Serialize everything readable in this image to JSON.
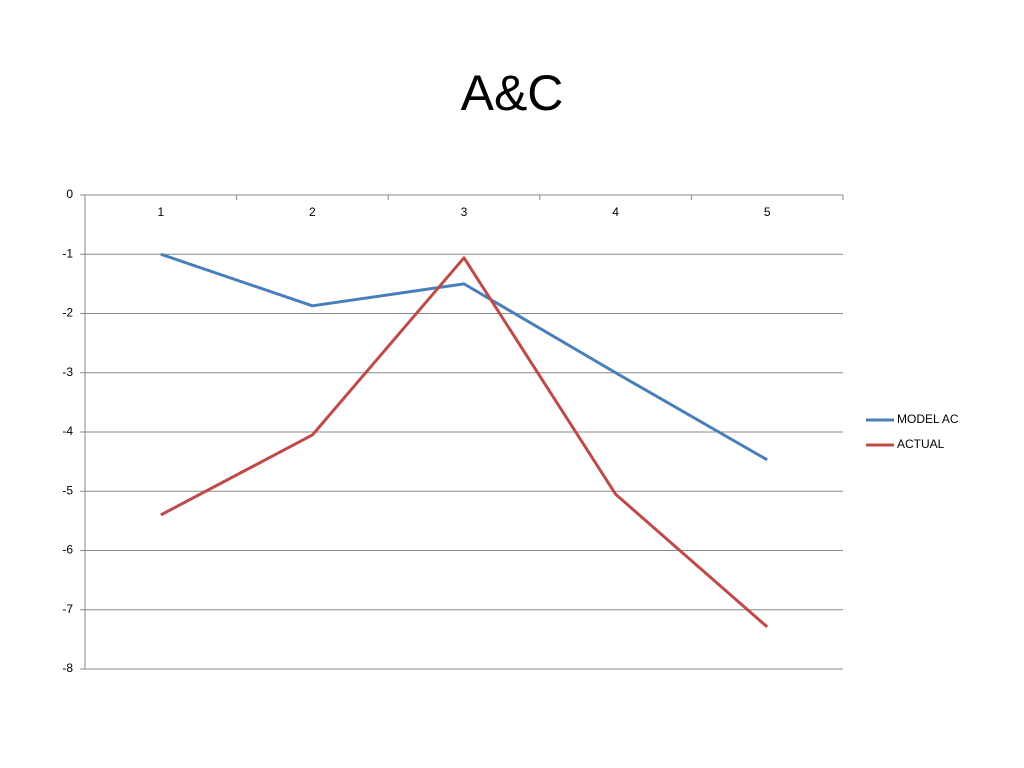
{
  "chart_data": {
    "type": "line",
    "title": "A&C",
    "categories": [
      "1",
      "2",
      "3",
      "4",
      "5"
    ],
    "series": [
      {
        "name": "MODEL AC",
        "color": "#4a7ebb",
        "values": [
          -1,
          -1.87,
          -1.5,
          -3.0,
          -4.47
        ]
      },
      {
        "name": "ACTUAL",
        "color": "#be4b48",
        "values": [
          -5.4,
          -4.05,
          -1.06,
          -5.05,
          -7.29
        ]
      }
    ],
    "ylim": [
      -8,
      0
    ],
    "yticks": [
      0,
      -1,
      -2,
      -3,
      -4,
      -5,
      -6,
      -7,
      -8
    ],
    "grid": true,
    "legend": "right"
  }
}
